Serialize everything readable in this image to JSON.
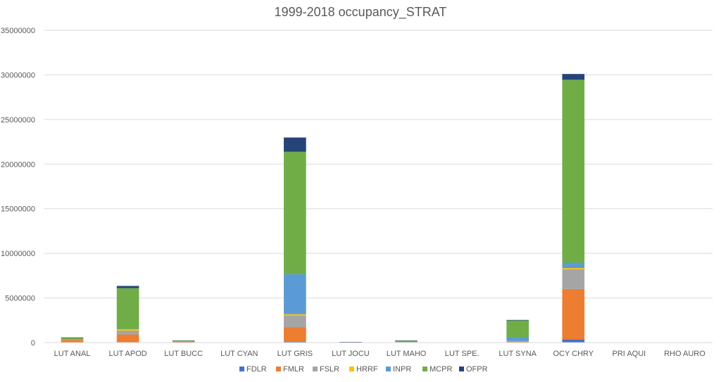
{
  "chart_data": {
    "type": "bar",
    "stacked": true,
    "title": "1999-2018 occupancy_STRAT",
    "xlabel": "",
    "ylabel": "",
    "ylim": [
      0,
      35000000
    ],
    "yticks": [
      0,
      5000000,
      10000000,
      15000000,
      20000000,
      25000000,
      30000000,
      35000000
    ],
    "ytick_labels": [
      "0",
      "5000000",
      "10000000",
      "15000000",
      "20000000",
      "25000000",
      "30000000",
      "35000000"
    ],
    "grid": true,
    "legend_position": "bottom",
    "categories": [
      "LUT ANAL",
      "LUT APOD",
      "LUT BUCC",
      "LUT CYAN",
      "LUT GRIS",
      "LUT JOCU",
      "LUT MAHO",
      "LUT SPE.",
      "LUT SYNA",
      "OCY CHRY",
      "PRI AQUI",
      "RHO AURO"
    ],
    "series": [
      {
        "name": "FDLR",
        "color": "#4472C4",
        "values": [
          0,
          0,
          0,
          0,
          80000,
          0,
          0,
          0,
          0,
          350000,
          0,
          0
        ]
      },
      {
        "name": "FMLR",
        "color": "#ED7D31",
        "values": [
          300000,
          900000,
          100000,
          0,
          1650000,
          20000,
          40000,
          0,
          80000,
          5650000,
          0,
          0
        ]
      },
      {
        "name": "FSLR",
        "color": "#A5A5A5",
        "values": [
          50000,
          450000,
          30000,
          0,
          1300000,
          10000,
          20000,
          0,
          100000,
          2200000,
          0,
          0
        ]
      },
      {
        "name": "HRRF",
        "color": "#FFC000",
        "values": [
          0,
          150000,
          0,
          0,
          150000,
          0,
          0,
          0,
          0,
          150000,
          0,
          0
        ]
      },
      {
        "name": "INPR",
        "color": "#5B9BD5",
        "values": [
          0,
          0,
          30000,
          0,
          4500000,
          0,
          0,
          0,
          450000,
          600000,
          0,
          0
        ]
      },
      {
        "name": "MCPR",
        "color": "#70AD47",
        "values": [
          200000,
          4600000,
          50000,
          0,
          13700000,
          20000,
          160000,
          0,
          1850000,
          20500000,
          0,
          0
        ]
      },
      {
        "name": "OFPR",
        "color": "#264478",
        "values": [
          30000,
          250000,
          40000,
          0,
          1600000,
          30000,
          30000,
          0,
          60000,
          650000,
          0,
          0
        ]
      }
    ]
  }
}
